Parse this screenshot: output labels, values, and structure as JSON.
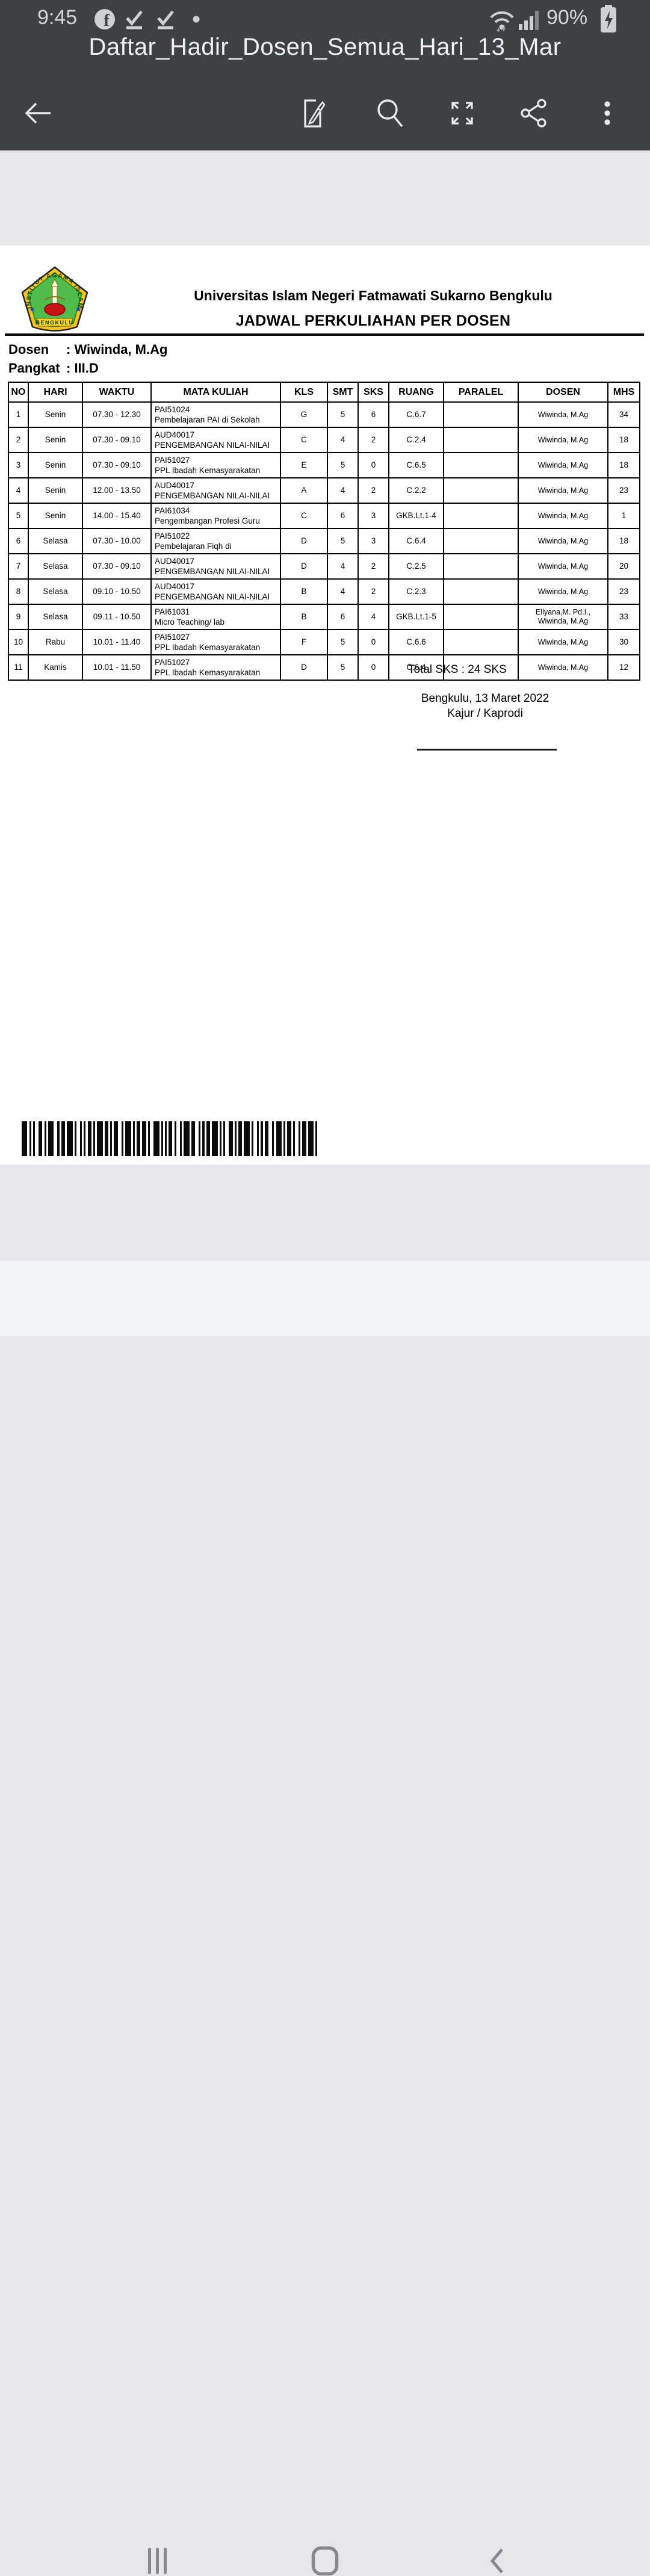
{
  "colors": {
    "appbar_bg": "#3e4043",
    "statusbar_fg": "#d5d6d8",
    "page_bg": "#ffffff",
    "canvas_bg": "#e7e7e9",
    "navbar_bg": "#f3f4f6",
    "logo_green": "#4fbc4c",
    "logo_gold": "#f6c51d",
    "logo_red": "#c81414"
  },
  "status_bar": {
    "time": "9:45",
    "battery_percent": "90%",
    "left_icons": [
      "facebook-icon",
      "download-done-icon",
      "download-done-icon",
      "notification-dot-icon"
    ],
    "right_icons": [
      "wifi-icon",
      "signal-icon",
      "battery-charging-icon"
    ]
  },
  "app_bar": {
    "title": "Daftar_Hadir_Dosen_Semua_Hari_13_Mar",
    "toolbar_icons": [
      "back-arrow-icon",
      "sign-edit-icon",
      "search-icon",
      "fullscreen-icon",
      "share-icon",
      "more-options-icon"
    ]
  },
  "document": {
    "university": "Universitas Islam Negeri Fatmawati Sukarno Bengkulu",
    "doc_title": "JADWAL PERKULIAHAN PER DOSEN",
    "logo": {
      "ring_text": "INSTITUT AGAMA ISLAM NEGERI",
      "banner_text": "BENGKULU"
    },
    "dosen_label": "Dosen",
    "dosen_value": ": Wiwinda, M.Ag",
    "pangkat_label": "Pangkat",
    "pangkat_value": ": III.D",
    "table": {
      "headers": [
        "NO",
        "HARI",
        "WAKTU",
        "MATA KULIAH",
        "KLS",
        "SMT",
        "SKS",
        "RUANG",
        "PARALEL",
        "DOSEN",
        "MHS"
      ],
      "rows": [
        {
          "no": "1",
          "hari": "Senin",
          "waktu": "07.30 - 12.30",
          "kode": "PAI51024",
          "mk": "Pembelajaran PAI di Sekolah",
          "kls": "G",
          "smt": "5",
          "sks": "6",
          "ruang": "C.6.7",
          "paralel": "",
          "dosen": "Wiwinda, M.Ag",
          "dosen2": "",
          "mhs": "34"
        },
        {
          "no": "2",
          "hari": "Senin",
          "waktu": "07.30 - 09.10",
          "kode": "AUD40017",
          "mk": "PENGEMBANGAN NILAI-NILAI",
          "kls": "C",
          "smt": "4",
          "sks": "2",
          "ruang": "C.2.4",
          "paralel": "",
          "dosen": "Wiwinda, M.Ag",
          "dosen2": "",
          "mhs": "18"
        },
        {
          "no": "3",
          "hari": "Senin",
          "waktu": "07.30 - 09.10",
          "kode": "PAI51027",
          "mk": "PPL Ibadah Kemasyarakatan",
          "kls": "E",
          "smt": "5",
          "sks": "0",
          "ruang": "C.6.5",
          "paralel": "",
          "dosen": "Wiwinda, M.Ag",
          "dosen2": "",
          "mhs": "18"
        },
        {
          "no": "4",
          "hari": "Senin",
          "waktu": "12.00 - 13.50",
          "kode": "AUD40017",
          "mk": "PENGEMBANGAN NILAI-NILAI",
          "kls": "A",
          "smt": "4",
          "sks": "2",
          "ruang": "C.2.2",
          "paralel": "",
          "dosen": "Wiwinda, M.Ag",
          "dosen2": "",
          "mhs": "23"
        },
        {
          "no": "5",
          "hari": "Senin",
          "waktu": "14.00 - 15.40",
          "kode": "PAI61034",
          "mk": "Pengembangan Profesi Guru",
          "kls": "C",
          "smt": "6",
          "sks": "3",
          "ruang": "GKB.Lt.1-4",
          "paralel": "",
          "dosen": "Wiwinda, M.Ag",
          "dosen2": "",
          "mhs": "1"
        },
        {
          "no": "6",
          "hari": "Selasa",
          "waktu": "07.30 - 10.00",
          "kode": "PAI51022",
          "mk": "Pembelajaran Fiqh di",
          "kls": "D",
          "smt": "5",
          "sks": "3",
          "ruang": "C.6.4",
          "paralel": "",
          "dosen": "Wiwinda, M.Ag",
          "dosen2": "",
          "mhs": "18"
        },
        {
          "no": "7",
          "hari": "Selasa",
          "waktu": "07.30 - 09.10",
          "kode": "AUD40017",
          "mk": "PENGEMBANGAN NILAI-NILAI",
          "kls": "D",
          "smt": "4",
          "sks": "2",
          "ruang": "C.2.5",
          "paralel": "",
          "dosen": "Wiwinda, M.Ag",
          "dosen2": "",
          "mhs": "20"
        },
        {
          "no": "8",
          "hari": "Selasa",
          "waktu": "09.10 - 10.50",
          "kode": "AUD40017",
          "mk": "PENGEMBANGAN NILAI-NILAI",
          "kls": "B",
          "smt": "4",
          "sks": "2",
          "ruang": "C.2.3",
          "paralel": "",
          "dosen": "Wiwinda, M.Ag",
          "dosen2": "",
          "mhs": "23"
        },
        {
          "no": "9",
          "hari": "Selasa",
          "waktu": "09.11 - 10.50",
          "kode": "PAI61031",
          "mk": "Micro Teaching/ lab",
          "kls": "B",
          "smt": "6",
          "sks": "4",
          "ruang": "GKB.Lt.1-5",
          "paralel": "",
          "dosen": "Ellyana,M. Pd.I.,",
          "dosen2": "Wiwinda, M.Ag",
          "mhs": "33"
        },
        {
          "no": "10",
          "hari": "Rabu",
          "waktu": "10.01 - 11.40",
          "kode": "PAI51027",
          "mk": "PPL Ibadah Kemasyarakatan",
          "kls": "F",
          "smt": "5",
          "sks": "0",
          "ruang": "C.6.6",
          "paralel": "",
          "dosen": "Wiwinda, M.Ag",
          "dosen2": "",
          "mhs": "30"
        },
        {
          "no": "11",
          "hari": "Kamis",
          "waktu": "10.01 - 11.50",
          "kode": "PAI51027",
          "mk": "PPL Ibadah Kemasyarakatan",
          "kls": "D",
          "smt": "5",
          "sks": "0",
          "ruang": "C.6.4",
          "paralel": "",
          "dosen": "Wiwinda, M.Ag",
          "dosen2": "",
          "mhs": "12"
        }
      ]
    },
    "total_sks": "Total SKS : 24 SKS",
    "place_date": "Bengkulu, 13 Maret 2022",
    "signer_title": "Kajur / Kaprodi",
    "barcode": "barcode-1d"
  },
  "nav_bar": {
    "icons": [
      "recents-icon",
      "home-icon",
      "back-icon"
    ]
  }
}
